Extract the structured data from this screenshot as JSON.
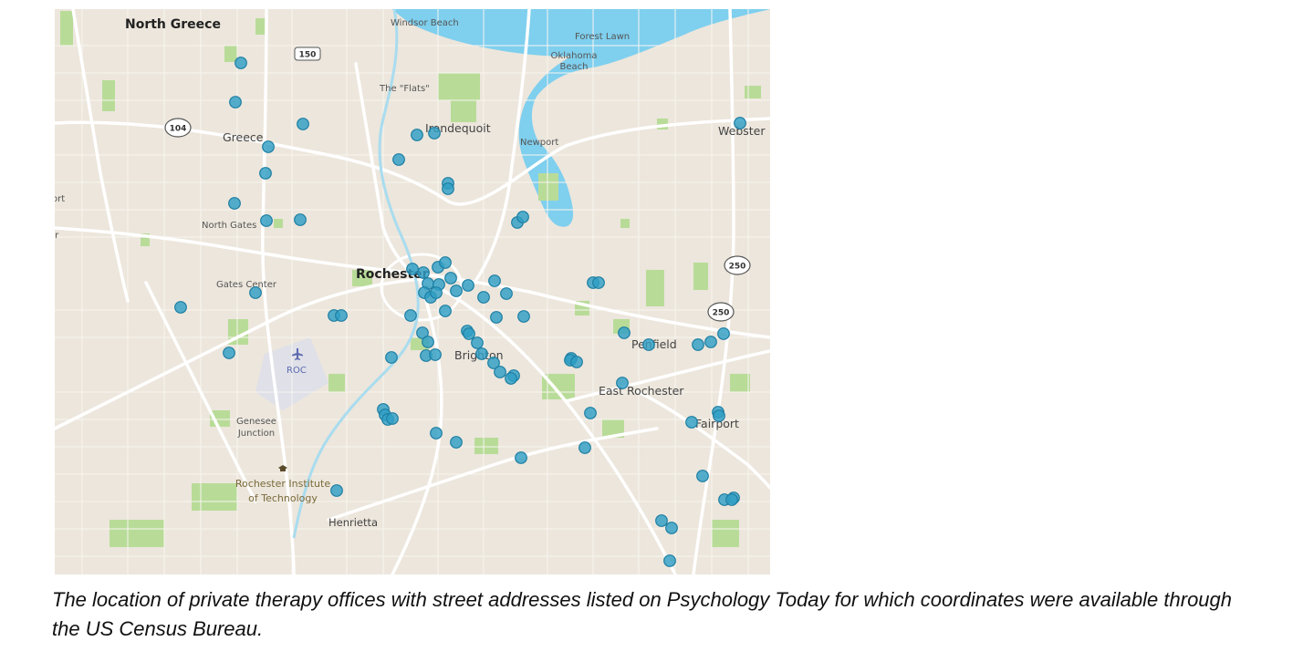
{
  "map": {
    "places": {
      "north_greece": "North Greece",
      "windsor_beach": "Windsor Beach",
      "forest_lawn": "Forest Lawn",
      "oklahoma_beach_1": "Oklahoma",
      "oklahoma_beach_2": "Beach",
      "the_flats": "The \"Flats\"",
      "irondequoit": "Irondequoit",
      "newport": "Newport",
      "webster": "Webster",
      "greece": "Greece",
      "north_gates": "North Gates",
      "rochester": "Rochester",
      "gates_center": "Gates Center",
      "roc": "ROC",
      "brighton": "Brighton",
      "penfield": "Penfield",
      "east_rochester": "East Rochester",
      "fairport": "Fairport",
      "genesee_junction_1": "Genesee",
      "genesee_junction_2": "Junction",
      "rit_1": "Rochester Institute",
      "rit_2": "of Technology",
      "henrietta": "Henrietta",
      "edge_port": "ort",
      "edge_er": "er"
    },
    "shields": {
      "route_150": "150",
      "route_104": "104",
      "route_250_north": "250",
      "route_250_south": "250"
    },
    "colors": {
      "land": "#ece6dc",
      "water": "#7fcfee",
      "park": "#b8dc98",
      "road": "#ffffff",
      "marker_fill": "#2f9fc4",
      "marker_stroke": "#1d7ea3"
    },
    "icons": [
      "airport-icon",
      "graduation-cap-icon",
      "location-marker"
    ]
  },
  "caption": "The location of private therapy offices with street addresses listed on Psychology Today for which coordinates were available through the US Census Bureau."
}
